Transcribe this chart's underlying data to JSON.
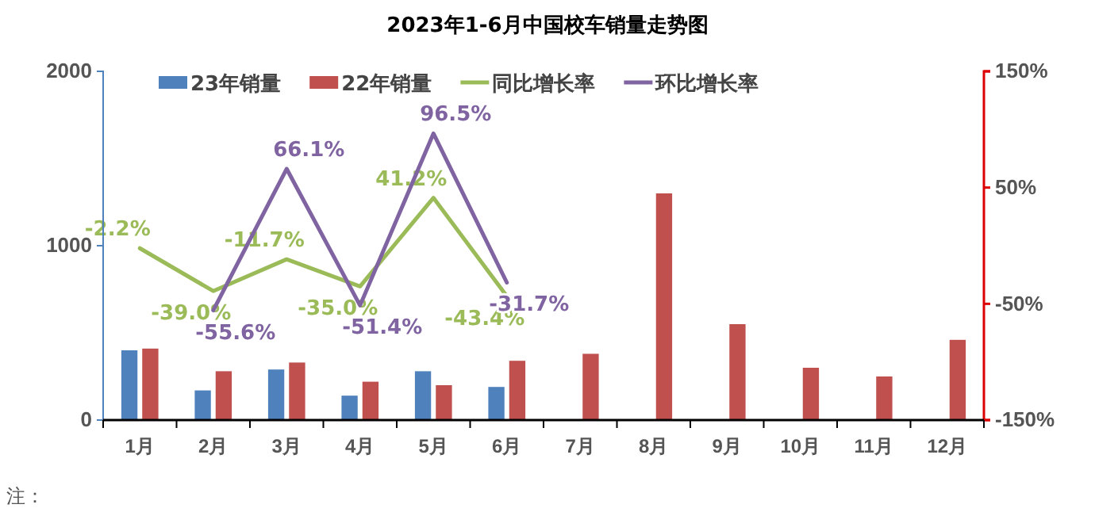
{
  "chart_data": {
    "type": "bar",
    "title": "2023年1-6月中国校车销量走势图",
    "categories": [
      "1月",
      "2月",
      "3月",
      "4月",
      "5月",
      "6月",
      "7月",
      "8月",
      "9月",
      "10月",
      "11月",
      "12月"
    ],
    "series": [
      {
        "name": "23年销量",
        "color": "#4f81bd",
        "values": [
          400,
          170,
          290,
          140,
          280,
          190,
          null,
          null,
          null,
          null,
          null,
          null
        ]
      },
      {
        "name": "22年销量",
        "color": "#c0504d",
        "values": [
          410,
          280,
          330,
          220,
          200,
          340,
          380,
          1300,
          550,
          300,
          250,
          460
        ]
      },
      {
        "name": "同比增长率",
        "type": "line",
        "axis": "y2",
        "color": "#9bbb59",
        "values": [
          -2.2,
          -39.0,
          -11.7,
          -35.0,
          41.2,
          -43.4,
          null,
          null,
          null,
          null,
          null,
          null
        ],
        "value_labels": [
          "-2.2%",
          "-39.0%",
          "-11.7%",
          "-35.0%",
          "41.2%",
          "-43.4%",
          null,
          null,
          null,
          null,
          null,
          null
        ]
      },
      {
        "name": "环比增长率",
        "type": "line",
        "axis": "y2",
        "color": "#8064a2",
        "values": [
          null,
          -55.6,
          66.1,
          -51.4,
          96.5,
          -31.7,
          null,
          null,
          null,
          null,
          null,
          null
        ],
        "value_labels": [
          null,
          "-55.6%",
          "66.1%",
          "-51.4%",
          "96.5%",
          "-31.7%",
          null,
          null,
          null,
          null,
          null,
          null
        ]
      }
    ],
    "ylim": [
      0,
      2000
    ],
    "yticks": [
      0,
      1000,
      2000
    ],
    "y2lim": [
      -150,
      150
    ],
    "y2ticks": [
      {
        "value": 150,
        "label": "150%"
      },
      {
        "value": 50,
        "label": "50%"
      },
      {
        "value": -50,
        "label": "-50%"
      },
      {
        "value": -150,
        "label": "-150%"
      }
    ],
    "legend": "top",
    "grid": false,
    "annotations": [
      "注："
    ]
  }
}
